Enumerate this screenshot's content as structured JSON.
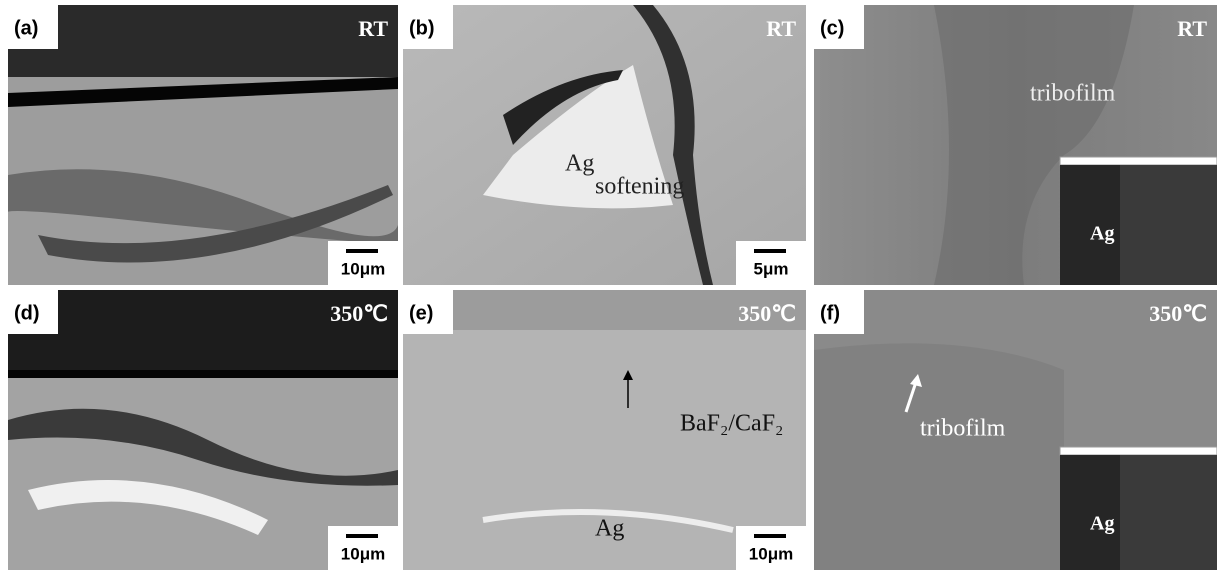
{
  "panels": [
    {
      "label": "(a)",
      "condition": "RT",
      "scale_bar": "10μm",
      "annotations": []
    },
    {
      "label": "(b)",
      "condition": "RT",
      "scale_bar": "5μm",
      "annotations": [
        "Ag",
        "softening"
      ]
    },
    {
      "label": "(c)",
      "condition": "RT",
      "annotations": [
        "tribofilm"
      ],
      "inset_label": "Ag"
    },
    {
      "label": "(d)",
      "condition": "350℃",
      "scale_bar": "10μm",
      "annotations": []
    },
    {
      "label": "(e)",
      "condition": "350℃",
      "scale_bar": "10μm",
      "annotations": [
        "BaF₂/CaF₂",
        "Ag"
      ]
    },
    {
      "label": "(f)",
      "condition": "350℃",
      "annotations": [
        "tribofilm"
      ],
      "inset_label": "Ag"
    }
  ]
}
